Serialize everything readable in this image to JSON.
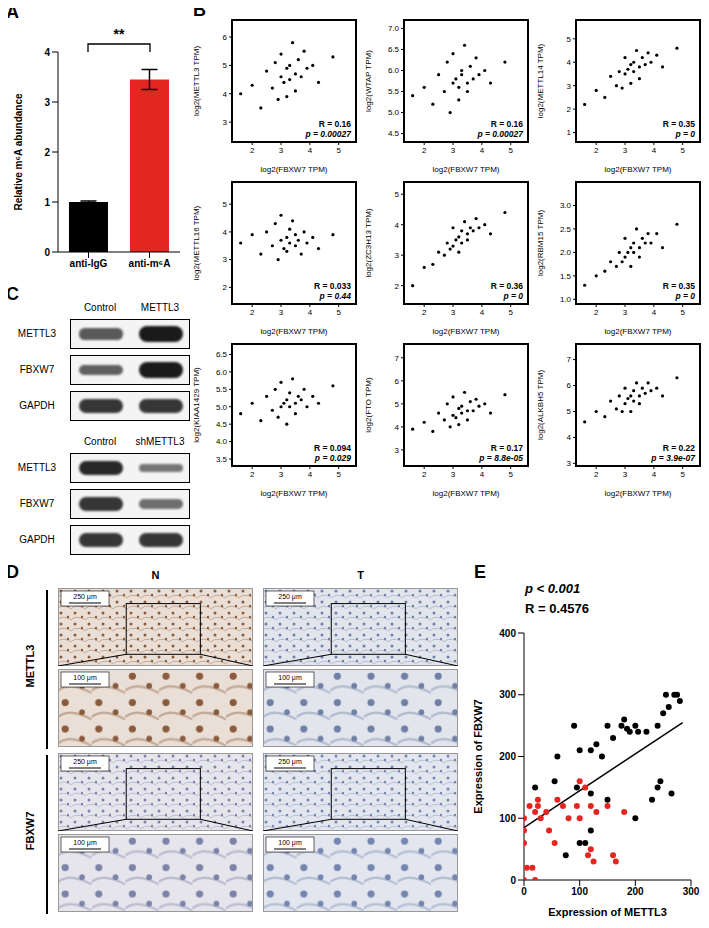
{
  "panel_labels": [
    "A",
    "B",
    "C",
    "D",
    "E"
  ],
  "chart_data": [
    {
      "type": "bar",
      "categories": [
        "anti-IgG",
        "anti-m⁶A"
      ],
      "values": [
        1.0,
        3.45
      ],
      "errors": [
        0.02,
        0.2
      ],
      "colors": [
        "#000000",
        "#e3261f"
      ],
      "y_label": "Relative m⁶A abundance",
      "ylim": [
        0,
        4
      ],
      "yticks": [
        0,
        1,
        2,
        3,
        4
      ],
      "annotations": [
        "**"
      ]
    },
    {
      "type": "scatter",
      "x_label": "log2(FBXW7 TPM)",
      "y_label": "log2(METTL3 TPM)",
      "color": "#000000",
      "annotations": [
        "R = 0.16",
        "p = 0.00027"
      ],
      "xlim": [
        1.3,
        5.6
      ],
      "xticks": [
        2,
        3,
        4,
        5
      ],
      "ylim": [
        2.3,
        6.6
      ],
      "yticks": [
        3,
        4,
        5,
        6
      ],
      "x": [
        1.6,
        2.0,
        2.3,
        2.5,
        2.7,
        2.8,
        2.9,
        3.0,
        3.0,
        3.1,
        3.2,
        3.2,
        3.3,
        3.3,
        3.4,
        3.5,
        3.5,
        3.6,
        3.7,
        3.8,
        3.9,
        4.1,
        4.3,
        4.8
      ],
      "values": [
        4.0,
        4.3,
        3.5,
        4.8,
        4.2,
        5.1,
        3.8,
        4.6,
        5.4,
        4.4,
        4.9,
        3.9,
        5.0,
        4.5,
        5.8,
        4.7,
        4.1,
        5.2,
        4.6,
        5.5,
        4.9,
        5.0,
        4.4,
        5.3
      ]
    },
    {
      "type": "scatter",
      "x_label": "log2(FBXW7 TPM)",
      "y_label": "log2(WTAP TPM)",
      "color": "#000000",
      "annotations": [
        "R = 0.16",
        "p = 0.00027"
      ],
      "xlim": [
        1.3,
        5.6
      ],
      "xticks": [
        2,
        3,
        4,
        5
      ],
      "ylim": [
        4.3,
        7.2
      ],
      "yticks": [
        4.5,
        {
          "value": 5,
          "label": "5.0"
        },
        5.5,
        {
          "value": 6,
          "label": "6.0"
        },
        6.5,
        {
          "value": 7,
          "label": "7.0"
        }
      ],
      "x": [
        1.6,
        2.0,
        2.3,
        2.5,
        2.7,
        2.8,
        2.9,
        3.0,
        3.0,
        3.1,
        3.2,
        3.2,
        3.3,
        3.3,
        3.4,
        3.5,
        3.5,
        3.6,
        3.7,
        3.8,
        3.9,
        4.1,
        4.3,
        4.8
      ],
      "values": [
        5.4,
        5.6,
        5.2,
        5.9,
        5.5,
        6.2,
        5.0,
        5.7,
        6.4,
        5.8,
        5.6,
        5.3,
        6.0,
        5.9,
        6.6,
        5.7,
        5.5,
        6.1,
        5.8,
        6.3,
        5.9,
        6.0,
        5.7,
        6.2
      ]
    },
    {
      "type": "scatter",
      "x_label": "log2(FBXW7 TPM)",
      "y_label": "log2(METTL14 TPM)",
      "color": "#000000",
      "annotations": [
        "R = 0.35",
        "p = 0"
      ],
      "xlim": [
        1.3,
        5.6
      ],
      "xticks": [
        2,
        3,
        4,
        5
      ],
      "ylim": [
        0.6,
        5.8
      ],
      "yticks": [
        1,
        2,
        3,
        4,
        5
      ],
      "x": [
        1.6,
        2.0,
        2.3,
        2.5,
        2.7,
        2.8,
        2.9,
        3.0,
        3.0,
        3.1,
        3.2,
        3.2,
        3.3,
        3.3,
        3.4,
        3.5,
        3.5,
        3.6,
        3.7,
        3.8,
        3.9,
        4.1,
        4.3,
        4.8
      ],
      "values": [
        2.2,
        2.8,
        2.5,
        3.4,
        3.0,
        3.6,
        2.9,
        3.5,
        4.2,
        3.7,
        3.9,
        3.1,
        4.0,
        3.6,
        4.5,
        3.8,
        3.3,
        4.2,
        3.9,
        4.4,
        4.0,
        4.3,
        3.8,
        4.6
      ]
    },
    {
      "type": "scatter",
      "x_label": "log2(FBXW7 TPM)",
      "y_label": "log2(METTL16 TPM)",
      "color": "#000000",
      "annotations": [
        "R = 0.033",
        "p = 0.44"
      ],
      "xlim": [
        1.3,
        5.6
      ],
      "xticks": [
        2,
        3,
        4,
        5
      ],
      "ylim": [
        1.4,
        5.8
      ],
      "yticks": [
        2,
        3,
        4,
        5
      ],
      "x": [
        1.6,
        2.0,
        2.3,
        2.5,
        2.7,
        2.8,
        2.9,
        3.0,
        3.0,
        3.1,
        3.2,
        3.2,
        3.3,
        3.3,
        3.4,
        3.5,
        3.5,
        3.6,
        3.7,
        3.8,
        3.9,
        4.1,
        4.3,
        4.8
      ],
      "values": [
        3.6,
        3.9,
        3.2,
        4.0,
        3.5,
        4.3,
        3.0,
        3.7,
        4.6,
        3.4,
        3.8,
        3.3,
        4.1,
        3.6,
        4.4,
        3.5,
        3.9,
        3.7,
        3.2,
        4.0,
        3.6,
        3.8,
        3.4,
        3.9
      ]
    },
    {
      "type": "scatter",
      "x_label": "log2(FBXW7 TPM)",
      "y_label": "log2(ZC3H13 TPM)",
      "color": "#000000",
      "annotations": [
        "R = 0.36",
        "p = 0"
      ],
      "xlim": [
        1.3,
        5.6
      ],
      "xticks": [
        2,
        3,
        4,
        5
      ],
      "ylim": [
        1.4,
        5.4
      ],
      "yticks": [
        2,
        3,
        4,
        5
      ],
      "x": [
        1.6,
        2.0,
        2.3,
        2.5,
        2.7,
        2.8,
        2.9,
        3.0,
        3.0,
        3.1,
        3.2,
        3.2,
        3.3,
        3.3,
        3.4,
        3.5,
        3.5,
        3.6,
        3.7,
        3.8,
        3.9,
        4.1,
        4.3,
        4.8
      ],
      "values": [
        2.0,
        2.6,
        2.7,
        3.1,
        3.0,
        3.4,
        3.2,
        3.3,
        3.9,
        3.5,
        3.6,
        3.1,
        3.8,
        3.4,
        4.1,
        3.7,
        3.5,
        3.9,
        3.8,
        4.2,
        3.9,
        4.0,
        3.7,
        4.4
      ]
    },
    {
      "type": "scatter",
      "x_label": "log2(FBXW7 TPM)",
      "y_label": "log2(RBM15 TPM)",
      "color": "#000000",
      "annotations": [
        "R = 0.35",
        "p = 0"
      ],
      "xlim": [
        1.3,
        5.6
      ],
      "xticks": [
        2,
        3,
        4,
        5
      ],
      "ylim": [
        0.9,
        3.5
      ],
      "yticks": [
        {
          "value": 1,
          "label": "1.0"
        },
        1.5,
        {
          "value": 2,
          "label": "2.0"
        },
        2.5,
        {
          "value": 3,
          "label": "3.0"
        }
      ],
      "x": [
        1.6,
        2.0,
        2.3,
        2.5,
        2.7,
        2.8,
        2.9,
        3.0,
        3.0,
        3.1,
        3.2,
        3.2,
        3.3,
        3.3,
        3.4,
        3.5,
        3.5,
        3.6,
        3.7,
        3.8,
        3.9,
        4.1,
        4.3,
        4.8
      ],
      "values": [
        1.3,
        1.5,
        1.6,
        1.8,
        1.7,
        2.0,
        1.8,
        1.9,
        2.3,
        2.0,
        2.1,
        1.7,
        2.2,
        2.0,
        2.5,
        2.1,
        1.9,
        2.3,
        2.2,
        2.4,
        2.2,
        2.4,
        2.1,
        2.6
      ]
    },
    {
      "type": "scatter",
      "x_label": "log2(FBXW7 TPM)",
      "y_label": "log2(KIAA1429 TPM)",
      "color": "#000000",
      "annotations": [
        "R = 0.094",
        "p = 0.029"
      ],
      "xlim": [
        1.3,
        5.6
      ],
      "xticks": [
        2,
        3,
        4,
        5
      ],
      "ylim": [
        3.3,
        6.8
      ],
      "yticks": [
        3.5,
        {
          "value": 4,
          "label": "4.0"
        },
        4.5,
        {
          "value": 5,
          "label": "5.0"
        },
        5.5,
        {
          "value": 6,
          "label": "6.0"
        },
        6.5
      ],
      "x": [
        1.6,
        2.0,
        2.3,
        2.5,
        2.7,
        2.8,
        2.9,
        3.0,
        3.0,
        3.1,
        3.2,
        3.2,
        3.3,
        3.3,
        3.4,
        3.5,
        3.5,
        3.6,
        3.7,
        3.8,
        3.9,
        4.1,
        4.3,
        4.8
      ],
      "values": [
        4.8,
        5.1,
        4.6,
        5.3,
        4.9,
        5.5,
        4.7,
        5.0,
        5.7,
        5.1,
        5.2,
        4.5,
        5.4,
        5.0,
        5.8,
        5.1,
        4.8,
        5.3,
        5.2,
        5.5,
        5.0,
        5.3,
        5.1,
        5.6
      ]
    },
    {
      "type": "scatter",
      "x_label": "log2(FBXW7 TPM)",
      "y_label": "log2(FTO TPM)",
      "color": "#000000",
      "annotations": [
        "R = 0.17",
        "p = 8.8e-05"
      ],
      "xlim": [
        1.3,
        5.6
      ],
      "xticks": [
        2,
        3,
        4,
        5
      ],
      "ylim": [
        2.3,
        7.6
      ],
      "yticks": [
        3,
        4,
        5,
        6,
        7
      ],
      "x": [
        1.6,
        2.0,
        2.3,
        2.5,
        2.7,
        2.8,
        2.9,
        3.0,
        3.0,
        3.1,
        3.2,
        3.2,
        3.3,
        3.3,
        3.4,
        3.5,
        3.5,
        3.6,
        3.7,
        3.8,
        3.9,
        4.1,
        4.3,
        4.8
      ],
      "values": [
        3.9,
        4.2,
        3.8,
        4.6,
        4.3,
        5.0,
        4.0,
        4.5,
        5.3,
        4.4,
        4.8,
        4.1,
        4.9,
        4.6,
        5.5,
        4.7,
        4.3,
        5.1,
        4.7,
        5.2,
        4.9,
        5.0,
        4.6,
        5.4
      ]
    },
    {
      "type": "scatter",
      "x_label": "log2(FBXW7 TPM)",
      "y_label": "log2(ALKBH5 TPM)",
      "color": "#000000",
      "annotations": [
        "R = 0.22",
        "p = 3.9e-07"
      ],
      "xlim": [
        1.3,
        5.6
      ],
      "xticks": [
        2,
        3,
        4,
        5
      ],
      "ylim": [
        2.9,
        7.6
      ],
      "yticks": [
        3,
        4,
        5,
        6,
        7
      ],
      "x": [
        1.6,
        2.0,
        2.3,
        2.5,
        2.7,
        2.8,
        2.9,
        3.0,
        3.0,
        3.1,
        3.2,
        3.2,
        3.3,
        3.3,
        3.4,
        3.5,
        3.5,
        3.6,
        3.7,
        3.8,
        3.9,
        4.1,
        4.3,
        4.8
      ],
      "values": [
        4.6,
        5.0,
        4.8,
        5.4,
        5.1,
        5.6,
        5.0,
        5.3,
        5.9,
        5.5,
        5.6,
        5.0,
        5.8,
        5.4,
        6.1,
        5.6,
        5.3,
        5.9,
        5.7,
        6.1,
        5.8,
        5.9,
        5.6,
        6.3
      ]
    },
    {
      "type": "scatter",
      "x_label": "Expression of METTL3",
      "y_label": "Expression of FBXW7",
      "annotations": [
        "p < 0.001",
        "R = 0.4576"
      ],
      "xlim": [
        0,
        300
      ],
      "xticks": [
        0,
        100,
        200,
        300
      ],
      "ylim": [
        0,
        400
      ],
      "yticks": [
        0,
        100,
        200,
        300,
        400
      ],
      "series": [
        {
          "color": "#000000",
          "x": [
            20,
            55,
            60,
            75,
            90,
            95,
            100,
            100,
            110,
            120,
            120,
            120,
            130,
            140,
            150,
            150,
            160,
            175,
            180,
            185,
            190,
            200,
            200,
            205,
            220,
            230,
            240,
            240,
            245,
            250,
            255,
            260,
            265,
            270,
            275,
            280
          ],
          "values": [
            150,
            160,
            200,
            40,
            250,
            150,
            210,
            60,
            60,
            210,
            140,
            80,
            220,
            200,
            130,
            250,
            230,
            250,
            260,
            245,
            240,
            100,
            250,
            240,
            240,
            130,
            150,
            250,
            160,
            270,
            300,
            280,
            140,
            300,
            300,
            290
          ]
        },
        {
          "color": "#e3261f",
          "x": [
            0,
            0,
            0,
            0,
            5,
            10,
            15,
            20,
            20,
            25,
            25,
            30,
            40,
            45,
            55,
            60,
            70,
            80,
            95,
            100,
            100,
            110,
            115,
            120,
            120,
            125,
            130,
            150,
            160,
            165,
            180
          ],
          "values": [
            0,
            60,
            80,
            100,
            20,
            120,
            20,
            0,
            110,
            130,
            120,
            100,
            110,
            80,
            60,
            130,
            120,
            100,
            120,
            160,
            100,
            150,
            40,
            120,
            50,
            30,
            110,
            120,
            40,
            30,
            110
          ]
        }
      ],
      "fit_line": {
        "x": [
          0,
          285
        ],
        "values": [
          85,
          255
        ]
      }
    }
  ],
  "blots": [
    {
      "columns": [
        "Control",
        "METTL3"
      ],
      "rows": [
        "METTL3",
        "FBXW7",
        "GAPDH"
      ],
      "intensity": [
        [
          0.55,
          1.0
        ],
        [
          0.5,
          1.0
        ],
        [
          0.8,
          0.8
        ]
      ]
    },
    {
      "columns": [
        "Control",
        "shMETTL3"
      ],
      "rows": [
        "METTL3",
        "FBXW7",
        "GAPDH"
      ],
      "intensity": [
        [
          0.9,
          0.35
        ],
        [
          0.8,
          0.4
        ],
        [
          0.8,
          0.8
        ]
      ]
    }
  ],
  "ihc": {
    "columns": [
      "N",
      "T"
    ],
    "rows": [
      "METTL3",
      "FBXW7"
    ],
    "scale_bars": [
      "250 μm",
      "100 μm"
    ]
  }
}
